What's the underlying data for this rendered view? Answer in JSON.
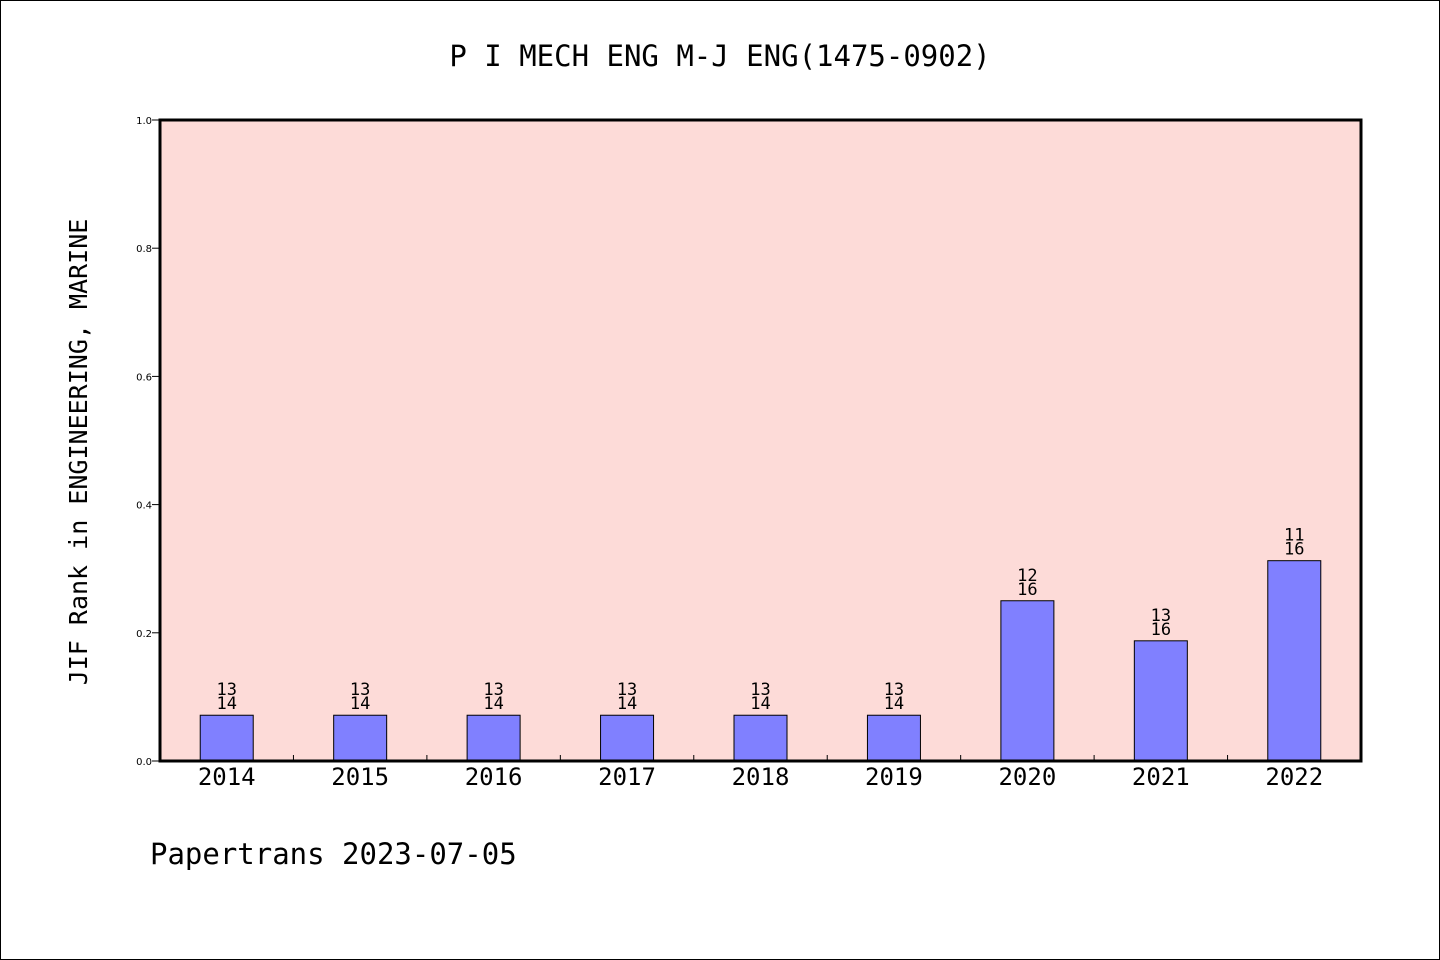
{
  "chart_data": {
    "type": "bar",
    "title": "P I MECH ENG M-J ENG(1475-0902)",
    "ylabel": "JIF Rank in ENGINEERING, MARINE",
    "xlabel": "",
    "ylim": [
      0,
      1.0
    ],
    "yticks": [
      "0.0",
      "0.2",
      "0.4",
      "0.6",
      "0.8",
      "1.0"
    ],
    "categories": [
      "2014",
      "2015",
      "2016",
      "2017",
      "2018",
      "2019",
      "2020",
      "2021",
      "2022"
    ],
    "ranks": [
      {
        "rank": "13",
        "total": "14"
      },
      {
        "rank": "13",
        "total": "14"
      },
      {
        "rank": "13",
        "total": "14"
      },
      {
        "rank": "13",
        "total": "14"
      },
      {
        "rank": "13",
        "total": "14"
      },
      {
        "rank": "13",
        "total": "14"
      },
      {
        "rank": "12",
        "total": "16"
      },
      {
        "rank": "13",
        "total": "16"
      },
      {
        "rank": "11",
        "total": "16"
      }
    ],
    "values": [
      0.0714,
      0.0714,
      0.0714,
      0.0714,
      0.0714,
      0.0714,
      0.25,
      0.1875,
      0.3125
    ],
    "grid": false,
    "colors": {
      "plot_background": "#fddbd8",
      "bar_fill": "#8080ff",
      "bar_stroke": "#000000"
    }
  },
  "footer": "Papertrans 2023-07-05"
}
